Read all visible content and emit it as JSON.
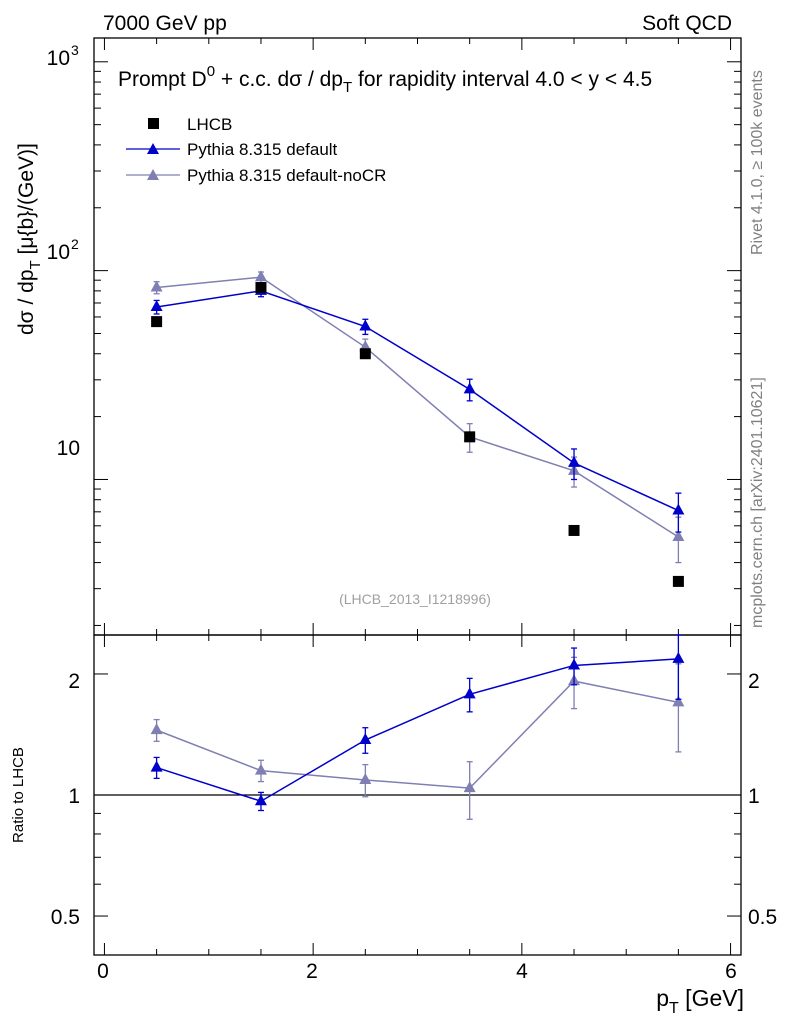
{
  "header": {
    "left": "7000 GeV pp",
    "right": "Soft QCD"
  },
  "side_labels": {
    "rivet": "Rivet 4.1.0, ≥ 100k events",
    "mcplots": "mcplots.cern.ch [arXiv:2401.10621]"
  },
  "chart_data": {
    "type": "scatter",
    "title": "Prompt D0 + c.c. dσ / dpT for rapidity interval 4.0 < y < 4.5",
    "title_parts": {
      "a": "Prompt D",
      "sup": "0",
      "b": " + c.c.  dσ / dp",
      "sub": "T",
      "c": " for rapidity interval 4.0 < y < 4.5"
    },
    "watermark": "(LHCB_2013_I1218996)",
    "x_axis": {
      "label_main": "p",
      "label_sub": "T",
      "label_rest": " [GeV]",
      "range": [
        -0.1,
        6.1
      ],
      "ticks": [
        "0",
        "2",
        "4",
        "6"
      ]
    },
    "main_y_axis": {
      "scale": "log",
      "label_a": "dσ / dp",
      "label_sub": "T",
      "label_b": " [μ{b}/(GeV)]",
      "range": [
        1.8,
        1300
      ],
      "tick_labels": {
        "t10": "10",
        "t100_base": "10",
        "t100_exp": "2",
        "t1000_base": "10",
        "t1000_exp": "3"
      }
    },
    "ratio_y_axis": {
      "scale": "log",
      "label": "Ratio to LHCB",
      "range": [
        0.4,
        2.5
      ],
      "ticks": [
        "0.5",
        "1",
        "2"
      ]
    },
    "legend": {
      "placement": "top-left",
      "entries": [
        "LHCB",
        "Pythia 8.315 default",
        "Pythia 8.315 default-noCR"
      ]
    },
    "series": [
      {
        "name": "LHCB",
        "color": "#000000",
        "marker": "square",
        "x": [
          0.5,
          1.5,
          2.5,
          3.5,
          4.5,
          5.5
        ],
        "y": [
          57,
          83,
          40,
          16,
          5.7,
          3.25
        ]
      },
      {
        "name": "Pythia 8.315 default",
        "color": "#0000cc",
        "marker": "triangle",
        "x": [
          0.5,
          1.5,
          2.5,
          3.5,
          4.5,
          5.5
        ],
        "y": [
          67,
          80,
          54,
          27,
          12,
          7.1
        ],
        "yerr": [
          5,
          5,
          4.5,
          3.2,
          2,
          1.5
        ],
        "ratio": [
          1.17,
          0.965,
          1.37,
          1.78,
          2.1,
          2.18
        ],
        "ratio_err": [
          0.07,
          0.05,
          0.1,
          0.17,
          0.22,
          0.45
        ]
      },
      {
        "name": "Pythia 8.315 default-noCR",
        "color": "#7f7fb3",
        "marker": "triangle",
        "x": [
          0.5,
          1.5,
          2.5,
          3.5,
          4.5,
          5.5
        ],
        "y": [
          83,
          93,
          43,
          16,
          11,
          5.3
        ],
        "yerr": [
          5.5,
          5.5,
          4,
          2.5,
          1.8,
          1.3
        ],
        "ratio": [
          1.45,
          1.15,
          1.09,
          1.04,
          1.92,
          1.7
        ],
        "ratio_err": [
          0.09,
          0.07,
          0.1,
          0.17,
          0.28,
          0.42
        ]
      }
    ]
  }
}
